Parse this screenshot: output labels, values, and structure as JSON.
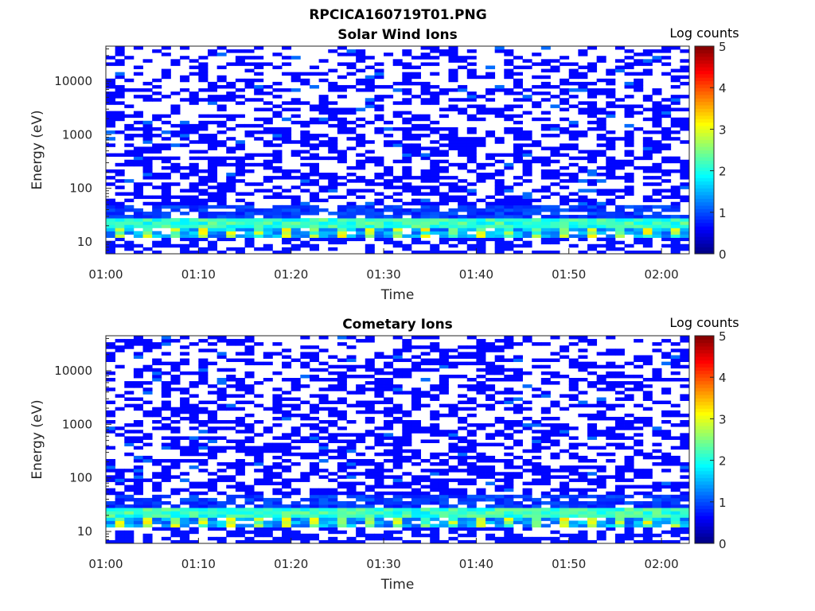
{
  "figure": {
    "title": "RPCICA160719T01.PNG"
  },
  "chart_data": [
    {
      "type": "heatmap",
      "title": "Solar Wind Ions",
      "xlabel": "Time",
      "ylabel": "Energy (eV)",
      "x_tick_labels": [
        "01:00",
        "01:10",
        "01:20",
        "01:30",
        "01:40",
        "01:50",
        "02:00"
      ],
      "x_range_minutes": [
        0,
        63
      ],
      "y_scale": "log",
      "y_tick_labels": [
        "10",
        "100",
        "1000",
        "10000"
      ],
      "y_range": [
        6,
        45000
      ],
      "colorbar": {
        "label": "Log counts",
        "range": [
          0,
          5
        ],
        "tick_labels": [
          "0",
          "1",
          "2",
          "3",
          "4",
          "5"
        ],
        "colormap": "jet"
      },
      "time_bins": 63,
      "energy_bins": 64,
      "pattern_seed": 11
    },
    {
      "type": "heatmap",
      "title": "Cometary Ions",
      "xlabel": "Time",
      "ylabel": "Energy (eV)",
      "x_tick_labels": [
        "01:00",
        "01:10",
        "01:20",
        "01:30",
        "01:40",
        "01:50",
        "02:00"
      ],
      "x_range_minutes": [
        0,
        63
      ],
      "y_scale": "log",
      "y_tick_labels": [
        "10",
        "100",
        "1000",
        "10000"
      ],
      "y_range": [
        6,
        45000
      ],
      "colorbar": {
        "label": "Log counts",
        "range": [
          0,
          5
        ],
        "tick_labels": [
          "0",
          "1",
          "2",
          "3",
          "4",
          "5"
        ],
        "colormap": "jet"
      },
      "time_bins": 63,
      "energy_bins": 64,
      "pattern_seed": 29
    }
  ]
}
